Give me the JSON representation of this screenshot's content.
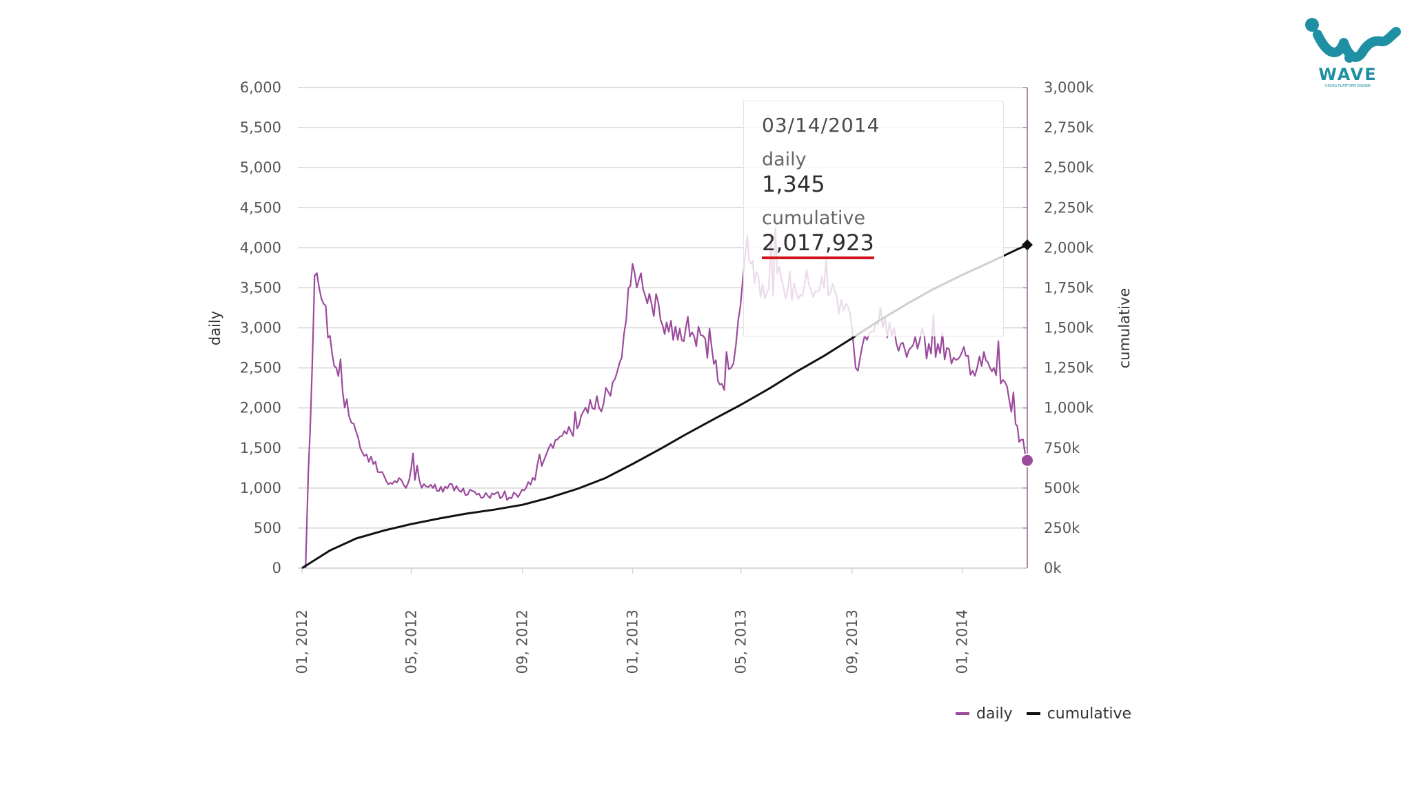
{
  "chart_data": {
    "type": "line",
    "title": "",
    "xlabel": "",
    "ylabel": "daily",
    "y2label": "cumulative",
    "ylim": [
      0,
      6000
    ],
    "y2lim": [
      0,
      3000000
    ],
    "grid": true,
    "x_ticks": [
      "01, 2012",
      "05, 2012",
      "09, 2012",
      "01, 2013",
      "05, 2013",
      "09, 2013",
      "01, 2014"
    ],
    "y_ticks": [
      "0",
      "500",
      "1,000",
      "1,500",
      "2,000",
      "2,500",
      "3,000",
      "3,500",
      "4,000",
      "4,500",
      "5,000",
      "5,500",
      "6,000"
    ],
    "y2_ticks": [
      "0k",
      "250k",
      "500k",
      "750k",
      "1,000k",
      "1,250k",
      "1,500k",
      "1,750k",
      "2,000k",
      "2,250k",
      "2,500k",
      "2,750k",
      "3,000k"
    ],
    "x_range": [
      "2012-01-01",
      "2014-03-14"
    ],
    "series": [
      {
        "name": "daily",
        "axis": "left",
        "color": "#9b4b9c",
        "x": [
          "2012-01-05",
          "2012-01-08",
          "2012-01-12",
          "2012-01-15",
          "2012-01-20",
          "2012-01-25",
          "2012-02-01",
          "2012-02-08",
          "2012-02-15",
          "2012-02-22",
          "2012-03-01",
          "2012-03-10",
          "2012-03-20",
          "2012-04-01",
          "2012-04-10",
          "2012-04-20",
          "2012-04-25",
          "2012-05-01",
          "2012-05-05",
          "2012-05-15",
          "2012-05-25",
          "2012-06-05",
          "2012-06-15",
          "2012-06-25",
          "2012-07-05",
          "2012-07-15",
          "2012-07-25",
          "2012-08-05",
          "2012-08-15",
          "2012-08-25",
          "2012-09-05",
          "2012-09-15",
          "2012-09-25",
          "2012-10-05",
          "2012-10-15",
          "2012-10-25",
          "2012-11-05",
          "2012-11-15",
          "2012-11-25",
          "2012-12-05",
          "2012-12-15",
          "2012-12-25",
          "2013-01-01",
          "2013-01-08",
          "2013-01-15",
          "2013-01-22",
          "2013-02-01",
          "2013-02-10",
          "2013-02-20",
          "2013-03-01",
          "2013-03-10",
          "2013-03-20",
          "2013-04-01",
          "2013-04-10",
          "2013-04-20",
          "2013-04-28",
          "2013-05-03",
          "2013-05-08",
          "2013-05-12",
          "2013-05-18",
          "2013-05-25",
          "2013-06-01",
          "2013-06-15",
          "2013-07-01",
          "2013-07-15",
          "2013-08-01",
          "2013-08-15",
          "2013-08-25",
          "2013-09-01",
          "2013-09-05",
          "2013-09-15",
          "2013-09-25",
          "2013-10-05",
          "2013-10-15",
          "2013-10-25",
          "2013-11-05",
          "2013-11-15",
          "2013-11-25",
          "2013-12-05",
          "2013-12-15",
          "2013-12-25",
          "2014-01-05",
          "2014-01-15",
          "2014-01-25",
          "2014-02-05",
          "2014-02-15",
          "2014-02-22",
          "2014-03-01",
          "2014-03-07",
          "2014-03-14"
        ],
        "values": [
          0,
          1200,
          2400,
          3650,
          3500,
          3300,
          2900,
          2500,
          2200,
          1900,
          1700,
          1400,
          1300,
          1150,
          1050,
          1100,
          1000,
          1250,
          1100,
          1050,
          1000,
          950,
          1050,
          950,
          980,
          930,
          900,
          950,
          850,
          920,
          1000,
          1100,
          1350,
          1500,
          1650,
          1700,
          1900,
          2100,
          2000,
          2200,
          2450,
          3100,
          3800,
          3600,
          3400,
          3300,
          3100,
          2950,
          2850,
          3000,
          2900,
          2900,
          2550,
          2300,
          2500,
          3100,
          3600,
          4150,
          3800,
          3700,
          3550,
          3500,
          3600,
          3450,
          3550,
          3500,
          3400,
          3300,
          3000,
          2500,
          2900,
          2950,
          3000,
          2900,
          2800,
          2750,
          2850,
          2800,
          2800,
          2750,
          2600,
          2650,
          2400,
          2700,
          2500,
          2350,
          2100,
          1800,
          1600,
          1345
        ]
      },
      {
        "name": "cumulative",
        "axis": "right",
        "color": "#111111",
        "x": [
          "2012-01-01",
          "2012-02-01",
          "2012-03-01",
          "2012-04-01",
          "2012-05-01",
          "2012-06-01",
          "2012-07-01",
          "2012-08-01",
          "2012-09-01",
          "2012-10-01",
          "2012-11-01",
          "2012-12-01",
          "2013-01-01",
          "2013-02-01",
          "2013-03-01",
          "2013-04-01",
          "2013-05-01",
          "2013-06-01",
          "2013-07-01",
          "2013-08-01",
          "2013-09-01",
          "2013-10-01",
          "2013-11-01",
          "2013-12-01",
          "2014-01-01",
          "2014-02-01",
          "2014-03-01",
          "2014-03-14"
        ],
        "values": [
          0,
          110000,
          185000,
          235000,
          275000,
          310000,
          340000,
          365000,
          395000,
          440000,
          495000,
          560000,
          650000,
          745000,
          835000,
          930000,
          1020000,
          1120000,
          1225000,
          1325000,
          1435000,
          1545000,
          1650000,
          1745000,
          1830000,
          1910000,
          1985000,
          2017923
        ]
      }
    ],
    "annotations": {
      "highlight_date": "03/14/2014",
      "highlight_daily": 1345,
      "highlight_cumulative": 2017923
    }
  },
  "tooltip": {
    "date": "03/14/2014",
    "daily_label": "daily",
    "daily_value": "1,345",
    "cumulative_label": "cumulative",
    "cumulative_value": "2,017,923"
  },
  "legend": [
    {
      "label": "daily",
      "color": "#9b4b9c"
    },
    {
      "label": "cumulative",
      "color": "#111111"
    }
  ],
  "logo": {
    "brand": "WAVE",
    "tagline": "CROSS PLATFORM ENGINE",
    "color": "#1f8fa3"
  },
  "colors": {
    "grid": "#d4d4d4",
    "axis_right": "#a38aa5",
    "tick_text": "#555555"
  }
}
